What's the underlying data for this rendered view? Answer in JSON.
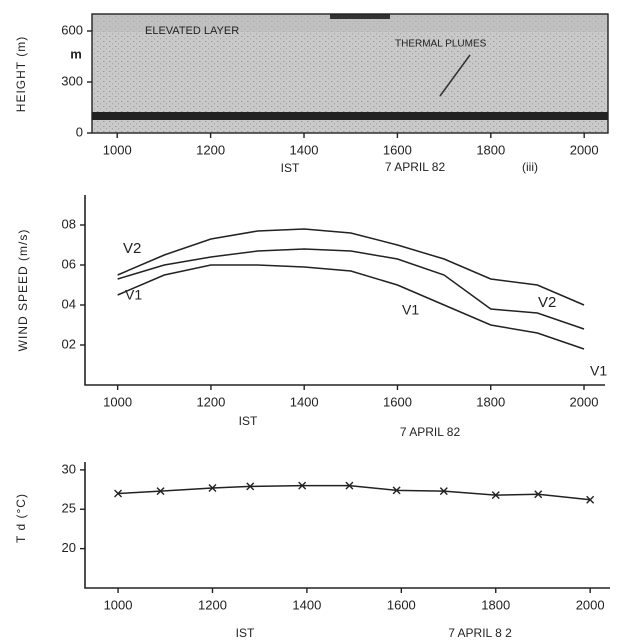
{
  "chart_data": [
    {
      "type": "echogram",
      "ylabel": "HEIGHT (m)",
      "y_unit": "m",
      "annotations": [
        "ELEVATED LAYER",
        "THERMAL PLUMES"
      ],
      "xlabel": "IST",
      "date": "7 APRIL 82",
      "panel_label": "(iii)",
      "xlim": [
        946,
        2051
      ],
      "xticks": [
        1000,
        1200,
        1400,
        1600,
        1800,
        2000
      ],
      "ylim": [
        0,
        700
      ],
      "yticks": [
        0,
        300,
        600
      ]
    },
    {
      "type": "line",
      "ylabel": "WIND SPEED (m/s)",
      "xlabel": "IST",
      "date": "7 APRIL 82",
      "annotations": [
        "V2",
        "V1",
        "V1",
        "V2",
        "V1"
      ],
      "x": [
        1000,
        1100,
        1200,
        1300,
        1400,
        1500,
        1600,
        1700,
        1800,
        1900,
        2000
      ],
      "series": [
        {
          "color": "#222",
          "values": [
            0.55,
            0.65,
            0.73,
            0.77,
            0.78,
            0.76,
            0.7,
            0.63,
            0.53,
            0.5,
            0.4
          ]
        },
        {
          "color": "#222",
          "values": [
            0.53,
            0.6,
            0.64,
            0.67,
            0.68,
            0.67,
            0.63,
            0.55,
            0.38,
            0.36,
            0.28
          ]
        },
        {
          "color": "#222",
          "values": [
            0.45,
            0.55,
            0.6,
            0.6,
            0.59,
            0.57,
            0.5,
            0.4,
            0.3,
            0.26,
            0.18
          ]
        }
      ],
      "xlim": [
        930,
        2045
      ],
      "xticks": [
        1000,
        1200,
        1400,
        1600,
        1800,
        2000
      ],
      "ylim": [
        0,
        0.95
      ],
      "yticks": [
        {
          "value": 0.2,
          "label": "02"
        },
        {
          "value": 0.4,
          "label": "04"
        },
        {
          "value": 0.6,
          "label": "06"
        },
        {
          "value": 0.8,
          "label": "08"
        }
      ]
    },
    {
      "type": "line",
      "marker": "x",
      "ylabel": "T d (°C)",
      "xlabel": "IST",
      "date": "7 APRIL 8 2",
      "x": [
        1000,
        1090,
        1200,
        1280,
        1390,
        1490,
        1590,
        1690,
        1800,
        1890,
        2000
      ],
      "series": [
        {
          "color": "#222",
          "values": [
            27,
            27.3,
            27.7,
            27.9,
            28,
            28,
            27.4,
            27.3,
            26.8,
            26.9,
            26.2
          ]
        }
      ],
      "xlim": [
        930,
        2042
      ],
      "xticks": [
        1000,
        1200,
        1400,
        1600,
        1800,
        2000
      ],
      "ylim": [
        15,
        31
      ],
      "yticks": [
        20,
        25,
        30
      ]
    }
  ]
}
